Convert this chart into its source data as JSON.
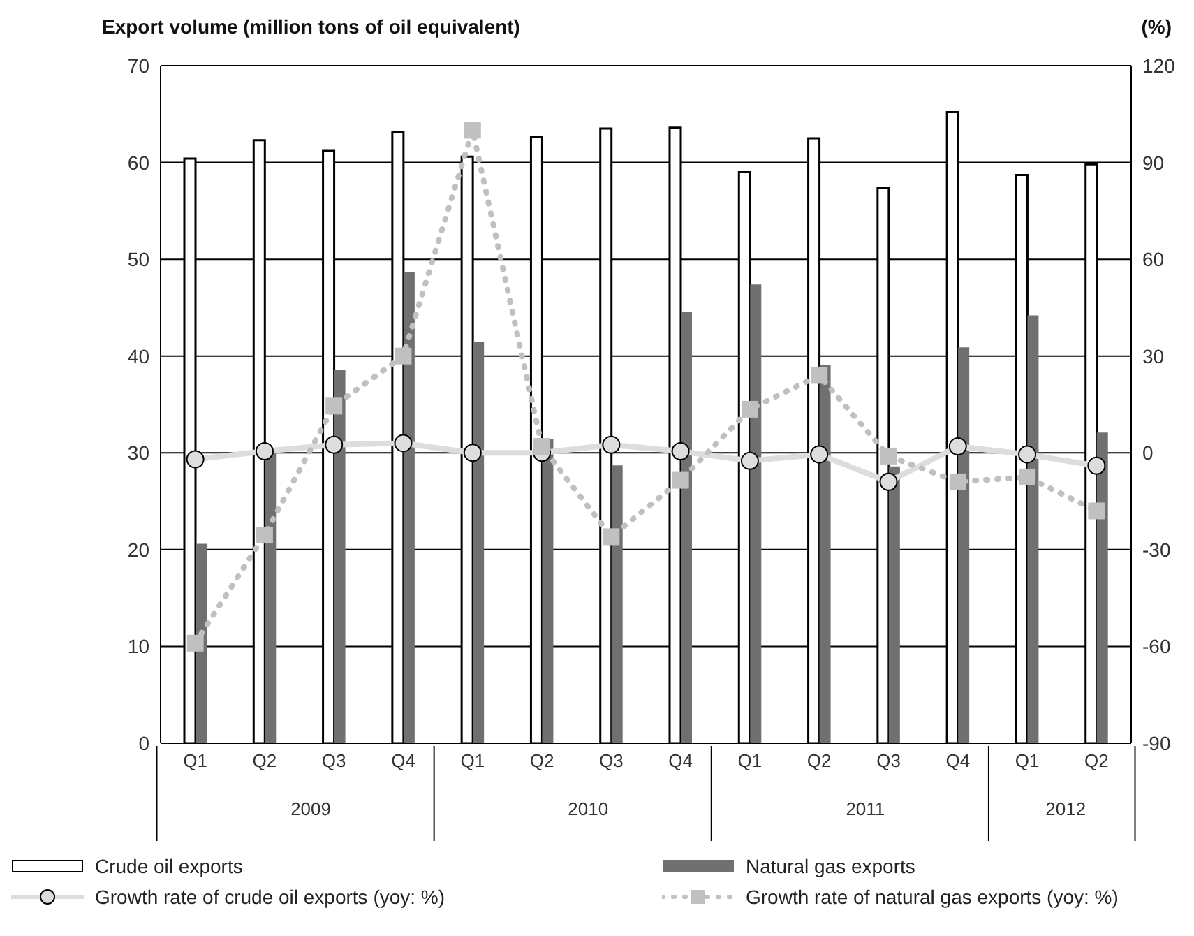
{
  "chart_data": {
    "type": "bar",
    "ylabel": "Export volume (million tons of oil equivalent)",
    "y2label": "(%)",
    "categories": [
      "Q1",
      "Q2",
      "Q3",
      "Q4",
      "Q1",
      "Q2",
      "Q3",
      "Q4",
      "Q1",
      "Q2",
      "Q3",
      "Q4",
      "Q1",
      "Q2"
    ],
    "annotations": [
      "2009",
      "2010",
      "2011",
      "2012"
    ],
    "series": [
      {
        "name": "Crude oil exports",
        "color": "#ffffff",
        "values": [
          60.4,
          62.3,
          61.2,
          63.1,
          60.6,
          62.6,
          63.5,
          63.6,
          59.0,
          62.5,
          57.4,
          65.2,
          58.7,
          59.8
        ]
      },
      {
        "name": "Natural gas exports",
        "color": "#707070",
        "values": [
          20.6,
          30.2,
          38.6,
          48.7,
          41.5,
          31.4,
          28.7,
          44.6,
          47.4,
          39.1,
          28.6,
          40.9,
          44.2,
          32.1
        ]
      },
      {
        "name": "Growth rate of crude oil exports (yoy: %)",
        "type": "line",
        "axis": "y2",
        "color": "#dddddd",
        "marker": "circle",
        "line_style": "solid",
        "values": [
          -2,
          0.5,
          2.5,
          3,
          0,
          0,
          2.5,
          0.5,
          -2.5,
          -0.5,
          -9,
          2,
          -0.5,
          -4
        ]
      },
      {
        "name": "Growth rate of natural gas exports (yoy: %)",
        "type": "line",
        "axis": "y2",
        "color": "#c0c0c0",
        "marker": "square",
        "line_style": "dotted",
        "values": [
          -59,
          -25.5,
          14.5,
          30,
          100,
          2,
          -26,
          -8.5,
          13.5,
          24,
          -1,
          -9,
          -7.5,
          -18
        ]
      }
    ],
    "ylim": [
      0,
      70
    ],
    "yticks": [
      0,
      10,
      20,
      30,
      40,
      50,
      60,
      70
    ],
    "y2lim": [
      -90,
      120
    ],
    "y2ticks": [
      -90,
      -60,
      -30,
      0,
      30,
      60,
      90,
      120
    ],
    "grid": "y",
    "legend": "bottom"
  }
}
